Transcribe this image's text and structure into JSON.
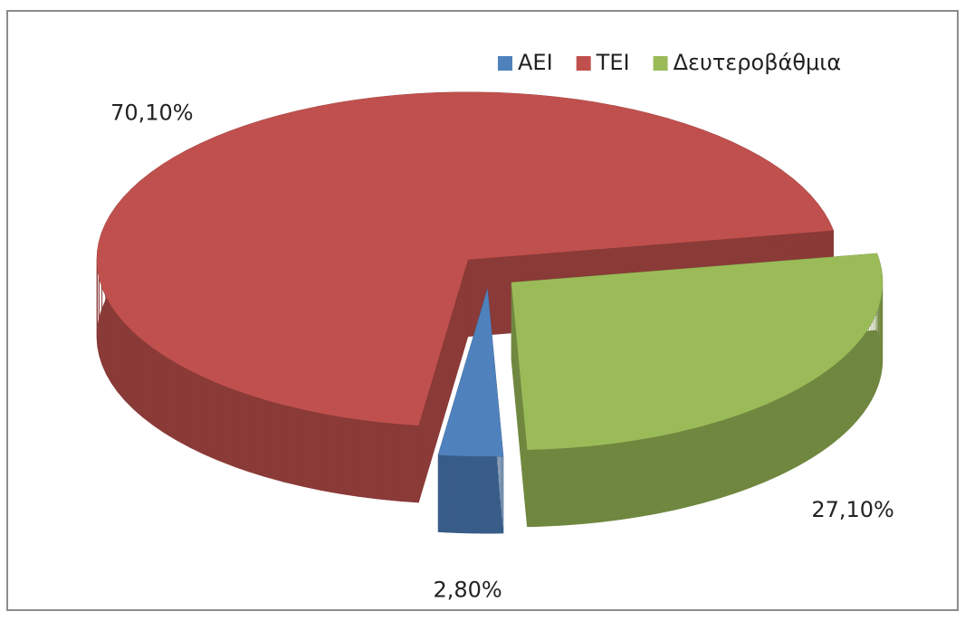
{
  "chart_data": {
    "type": "pie3d",
    "categories": [
      "ΑΕΙ",
      "ΤΕΙ",
      "Δευτεροβάθμια"
    ],
    "values": [
      2.8,
      70.1,
      27.1
    ],
    "value_labels": [
      "2,80%",
      "70,10%",
      "27,10%"
    ],
    "colors": [
      "#4f81bd",
      "#c0504d",
      "#9bbb59"
    ],
    "legend": "top-right"
  }
}
